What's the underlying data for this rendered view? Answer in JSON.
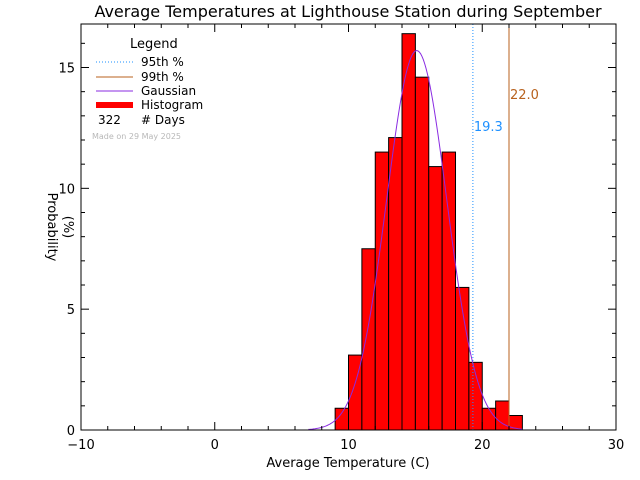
{
  "chart_data": {
    "type": "bar",
    "title": "Average Temperatures at Lighthouse Station during September",
    "xlabel": "Average Temperature (C)",
    "ylabel": "Probability",
    "ylabel_unit": "(%)",
    "xlim": [
      -10,
      30
    ],
    "ylim": [
      0,
      16.8
    ],
    "xticks": [
      -10,
      0,
      10,
      20,
      30
    ],
    "xtick_labels": [
      "−10",
      "0",
      "10",
      "20",
      "30"
    ],
    "yticks": [
      0,
      5,
      10,
      15
    ],
    "ytick_labels": [
      "0",
      "5",
      "10",
      "15"
    ],
    "bin_width": 1,
    "histogram": {
      "bin_left": [
        9,
        10,
        11,
        12,
        13,
        14,
        15,
        16,
        17,
        18,
        19,
        20,
        21,
        22
      ],
      "values": [
        0.9,
        3.1,
        7.5,
        11.5,
        12.1,
        16.4,
        14.6,
        10.9,
        11.5,
        5.9,
        2.8,
        0.9,
        1.2,
        0.6
      ]
    },
    "gaussian": {
      "mean": 15.1,
      "sigma": 2.25,
      "peak": 15.7,
      "x_from": 7,
      "x_to": 23
    },
    "percentiles": [
      {
        "name": "95th %",
        "value": 19.3,
        "label": "19.3",
        "color": "#1e90ff",
        "style": "dotted"
      },
      {
        "name": "99th %",
        "value": 22.0,
        "label": "22.0",
        "color": "#b8621e",
        "style": "solid"
      }
    ],
    "legend": {
      "title": "Legend",
      "placement": "top-left",
      "entries": [
        {
          "name": "95th %",
          "color": "#1e90ff",
          "style": "dotted"
        },
        {
          "name": "99th %",
          "color": "#b8621e",
          "style": "solid"
        },
        {
          "name": "Gaussian",
          "color": "#8a2be2",
          "style": "solid"
        },
        {
          "name": "Histogram",
          "color": "#ff0000",
          "style": "thick"
        }
      ],
      "days_count": "322",
      "days_label": "# Days"
    },
    "made_on": "Made on 29 May 2025",
    "grid": false,
    "colors": {
      "bar_fill": "#ff0000",
      "bar_edge": "#000000",
      "gaussian": "#8a2be2"
    }
  }
}
